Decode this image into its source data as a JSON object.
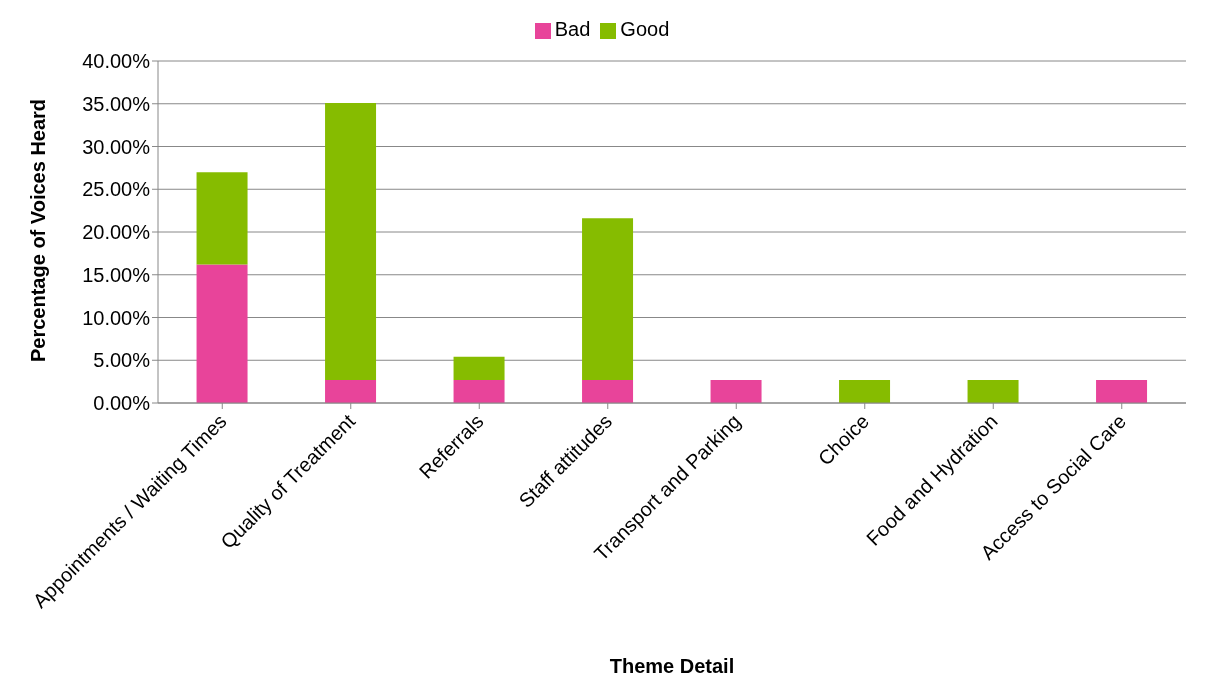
{
  "chart_data": {
    "type": "bar",
    "stacked": true,
    "xlabel": "Theme Detail",
    "ylabel": "Percentage of Voices Heard",
    "categories": [
      "Appointments / Waiting Times",
      "Quality of Treatment",
      "Referrals",
      "Staff attitudes",
      "Transport and Parking",
      "Choice",
      "Food and Hydration",
      "Access to Social Care"
    ],
    "series": [
      {
        "name": "Bad",
        "color": "#e8449a",
        "values": [
          16.2,
          2.7,
          2.7,
          2.7,
          2.7,
          null,
          null,
          2.7
        ]
      },
      {
        "name": "Good",
        "color": "#86bc00",
        "values": [
          10.8,
          32.4,
          2.7,
          18.9,
          null,
          2.7,
          2.7,
          null
        ]
      }
    ],
    "ylim": [
      0,
      40
    ],
    "yticks": [
      {
        "value": 0,
        "label": "0.00%"
      },
      {
        "value": 5,
        "label": "5.00%"
      },
      {
        "value": 10,
        "label": "10.00%"
      },
      {
        "value": 15,
        "label": "15.00%"
      },
      {
        "value": 20,
        "label": "20.00%"
      },
      {
        "value": 25,
        "label": "25.00%"
      },
      {
        "value": 30,
        "label": "30.00%"
      },
      {
        "value": 35,
        "label": "35.00%"
      },
      {
        "value": 40,
        "label": "40.00%"
      }
    ],
    "grid": "y",
    "legend": "top"
  }
}
